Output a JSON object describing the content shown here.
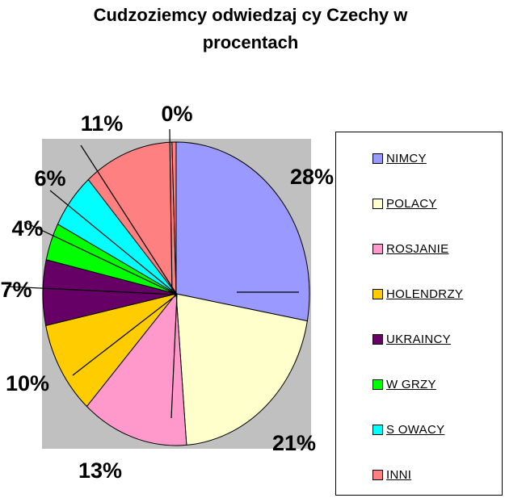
{
  "chart_data": {
    "type": "pie",
    "title_lines": [
      "Cudzoziemcy odwiedzaj  cy Czechy w",
      "procentach"
    ],
    "slices": [
      {
        "label": "NIMCY",
        "value": 28,
        "display": "28%",
        "color": "#9999ff"
      },
      {
        "label": "POLACY",
        "value": 21,
        "display": "21%",
        "color": "#ffffcc"
      },
      {
        "label": "ROSJANIE",
        "value": 13,
        "display": "13%",
        "color": "#ff99cc"
      },
      {
        "label": "HOLENDRZY",
        "value": 10,
        "display": "10%",
        "color": "#ffcc00"
      },
      {
        "label": "UKRAINCY",
        "value": 7,
        "display": "7%",
        "color": "#660066"
      },
      {
        "label": "W GRZY",
        "value": 4,
        "display": "4%",
        "color": "#00ff00"
      },
      {
        "label": "S OWACY",
        "value": 6,
        "display": "6%",
        "color": "#00ffff"
      },
      {
        "label": "INNI",
        "value": 11,
        "display": "11%",
        "color": "#ff8080"
      },
      {
        "label": "",
        "value": 0.5,
        "display": "0%",
        "color": "#ff8080"
      }
    ],
    "legend_position": "right",
    "plot_background": "#c0c0c0"
  }
}
